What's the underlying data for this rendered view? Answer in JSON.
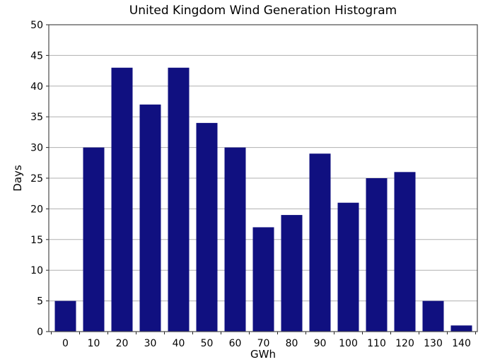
{
  "chart_data": {
    "type": "bar",
    "title": "United Kingdom Wind Generation Histogram",
    "xlabel": "GWh",
    "ylabel": "Days",
    "categories": [
      "0",
      "10",
      "20",
      "30",
      "40",
      "50",
      "60",
      "70",
      "80",
      "90",
      "100",
      "110",
      "120",
      "130",
      "140"
    ],
    "values": [
      5,
      30,
      43,
      37,
      43,
      34,
      30,
      17,
      19,
      29,
      21,
      25,
      26,
      5,
      1
    ],
    "ylim": [
      0,
      50
    ],
    "ytick_step": 5,
    "bin_width": 10,
    "grid": true,
    "legend_position": "none",
    "colors": {
      "bar": "#101080",
      "grid": "#b0b0b0",
      "frame": "#4a4a4a",
      "tick": "#262626",
      "text": "#000000",
      "background": "#ffffff"
    }
  }
}
